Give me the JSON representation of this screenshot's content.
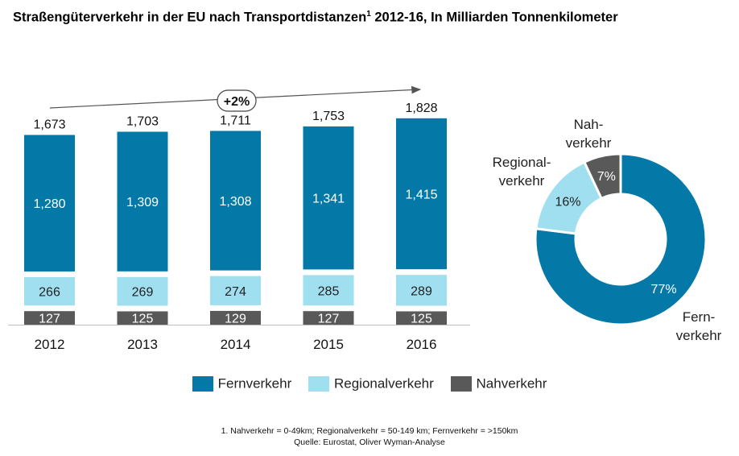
{
  "title": {
    "main": "Straßengüterverkehr in der EU nach Transportdistanzen",
    "sup": "1",
    "rest": " 2012-16, In Milliarden Tonnenkilometer"
  },
  "chart_data": [
    {
      "type": "bar",
      "stacked": true,
      "categories": [
        "2012",
        "2013",
        "2014",
        "2015",
        "2016"
      ],
      "series": [
        {
          "name": "Nahverkehr",
          "values": [
            127,
            125,
            129,
            127,
            125
          ],
          "labels": [
            "127",
            "125",
            "129",
            "127",
            "125"
          ]
        },
        {
          "name": "Regionalverkehr",
          "values": [
            266,
            269,
            274,
            285,
            289
          ],
          "labels": [
            "266",
            "269",
            "274",
            "285",
            "289"
          ]
        },
        {
          "name": "Fernverkehr",
          "values": [
            1280,
            1309,
            1308,
            1341,
            1415
          ],
          "labels": [
            "1,280",
            "1,309",
            "1,308",
            "1,341",
            "1,415"
          ]
        }
      ],
      "totals": [
        1673,
        1703,
        1711,
        1753,
        1828
      ],
      "total_labels": [
        "1,673",
        "1,703",
        "1,711",
        "1,753",
        "1,828"
      ],
      "growth_annotation": "+2%",
      "ylim": [
        0,
        1900
      ]
    },
    {
      "type": "pie",
      "donut": true,
      "slices": [
        {
          "name": "Fernverkehr",
          "value": 77,
          "label": "77%",
          "outer_label": [
            "Fern-",
            "verkehr"
          ]
        },
        {
          "name": "Regionalverkehr",
          "value": 16,
          "label": "16%",
          "outer_label": [
            "Regional-",
            "verkehr"
          ]
        },
        {
          "name": "Nahverkehr",
          "value": 7,
          "label": "7%",
          "outer_label": [
            "Nah-",
            "verkehr"
          ]
        }
      ]
    }
  ],
  "colors": {
    "Fernverkehr": "#0479a8",
    "Regionalverkehr": "#9fdff0",
    "Nahverkehr": "#595959"
  },
  "legend": [
    {
      "key": "Fernverkehr",
      "label": "Fernverkehr"
    },
    {
      "key": "Regionalverkehr",
      "label": "Regionalverkehr"
    },
    {
      "key": "Nahverkehr",
      "label": "Nahverkehr"
    }
  ],
  "footnote": "1. Nahverkehr = 0-49km; Regionalverkehr = 50-149 km; Fernverkehr = >150km",
  "source": "Quelle: Eurostat, Oliver Wyman-Analyse"
}
